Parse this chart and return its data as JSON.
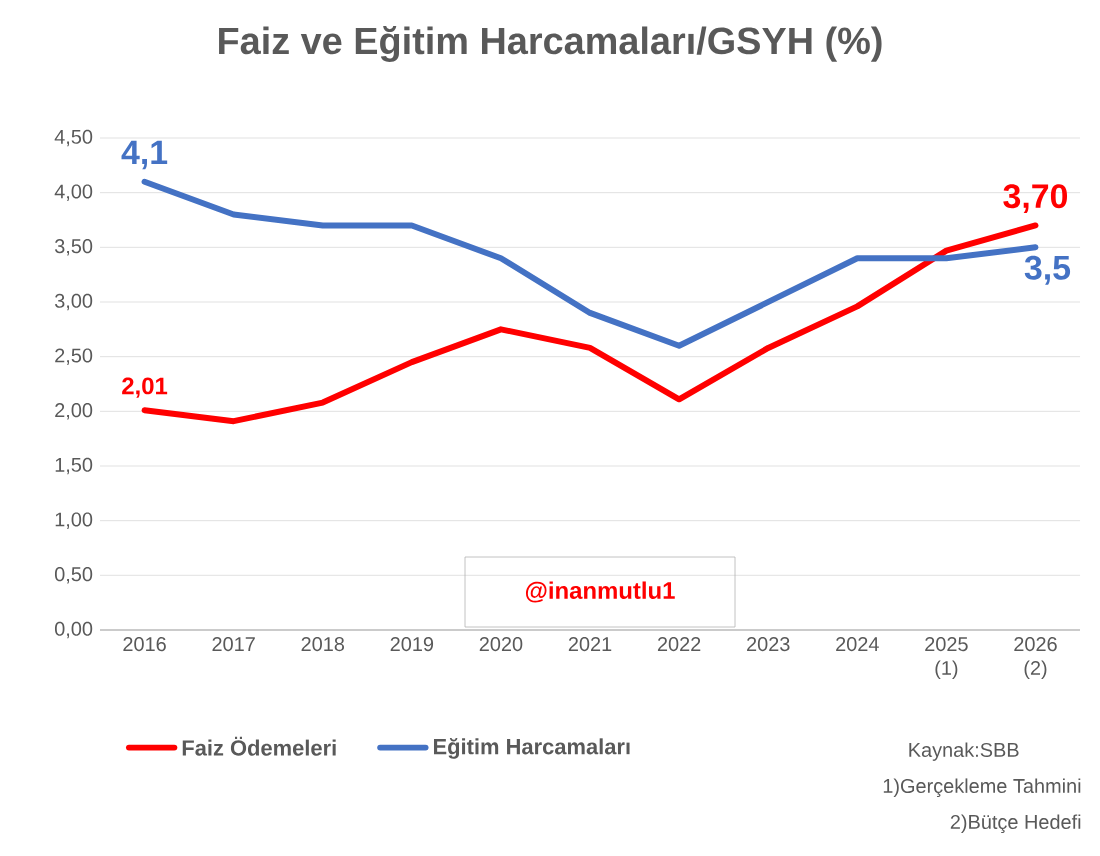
{
  "chart_data": {
    "type": "line",
    "title": "Faiz ve Eğitim Harcamaları/GSYH (%)",
    "categories": [
      "2016",
      "2017",
      "2018",
      "2019",
      "2020",
      "2021",
      "2022",
      "2023",
      "2024",
      "2025 (1)",
      "2026 (2)"
    ],
    "series": [
      {
        "name": "Faiz Ödemeleri",
        "color": "#ff0000",
        "values": [
          2.01,
          1.91,
          2.08,
          2.45,
          2.75,
          2.58,
          2.11,
          2.58,
          2.96,
          3.47,
          3.7
        ],
        "value_labels": [
          "2,01",
          null,
          null,
          null,
          null,
          null,
          null,
          null,
          null,
          null,
          "3,70"
        ]
      },
      {
        "name": "Eğitim Harcamaları",
        "color": "#4472c4",
        "values": [
          4.1,
          3.8,
          3.7,
          3.7,
          3.4,
          2.9,
          2.6,
          3.0,
          3.4,
          3.4,
          3.5
        ],
        "value_labels": [
          "4,1",
          null,
          null,
          null,
          null,
          null,
          null,
          null,
          null,
          null,
          "3,5"
        ]
      }
    ],
    "ylim": [
      0,
      4.5
    ],
    "yticks": [
      {
        "value": 0,
        "label": "0,00"
      },
      {
        "value": 0.5,
        "label": "0,50"
      },
      {
        "value": 1,
        "label": "1,00"
      },
      {
        "value": 1.5,
        "label": "1,50"
      },
      {
        "value": 2,
        "label": "2,00"
      },
      {
        "value": 2.5,
        "label": "2,50"
      },
      {
        "value": 3,
        "label": "3,00"
      },
      {
        "value": 3.5,
        "label": "3,50"
      },
      {
        "value": 4,
        "label": "4,00"
      },
      {
        "value": 4.5,
        "label": "4,50"
      }
    ],
    "grid": "y",
    "legend": "bottom",
    "marker": "none",
    "line_style": "solid",
    "annotations": [
      "@inanmutlu1",
      "Kaynak:SBB",
      "1)Gerçekleme Tahmini",
      "2)Bütçe Hedefi"
    ]
  }
}
